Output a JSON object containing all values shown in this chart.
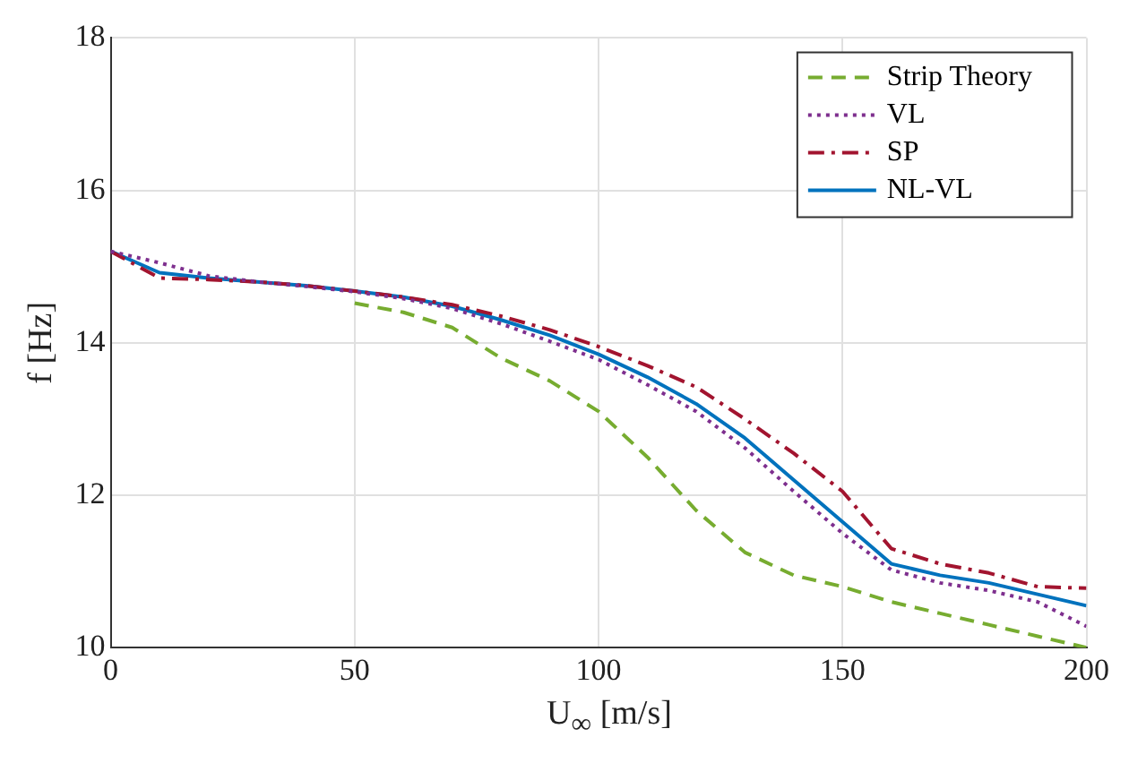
{
  "chart_data": {
    "type": "line",
    "xlabel": "U$_{∞}$ [m/s]",
    "ylabel": "f [Hz]",
    "xlim": [
      0,
      200
    ],
    "xticks": [
      0,
      50,
      100,
      150,
      200
    ],
    "ylim": [
      10,
      18
    ],
    "yticks": [
      10,
      12,
      14,
      16,
      18
    ],
    "grid": true,
    "legend": "top right",
    "marker": "none",
    "series": [
      {
        "name": "Strip Theory",
        "color": "#77ac30",
        "line_style": "dashed",
        "x": [
          50,
          60,
          70,
          80,
          90,
          100,
          110,
          120,
          130,
          140,
          150,
          160,
          170,
          180,
          190,
          200
        ],
        "values": [
          14.52,
          14.4,
          14.2,
          13.8,
          13.5,
          13.1,
          12.5,
          11.8,
          11.25,
          10.95,
          10.8,
          10.6,
          10.45,
          10.3,
          10.15,
          10.0
        ]
      },
      {
        "name": "VL",
        "color": "#7e2f8e",
        "line_style": "dotted",
        "x": [
          0,
          10,
          20,
          30,
          40,
          50,
          60,
          70,
          80,
          90,
          100,
          110,
          120,
          130,
          140,
          150,
          160,
          170,
          180,
          190,
          200
        ],
        "values": [
          15.2,
          15.05,
          14.88,
          14.8,
          14.74,
          14.67,
          14.58,
          14.45,
          14.25,
          14.02,
          13.78,
          13.45,
          13.1,
          12.62,
          12.05,
          11.5,
          11.02,
          10.85,
          10.75,
          10.6,
          10.28
        ]
      },
      {
        "name": "SP",
        "color": "#a2142f",
        "line_style": "dashdot",
        "x": [
          0,
          10,
          20,
          30,
          40,
          50,
          60,
          70,
          80,
          90,
          100,
          110,
          120,
          130,
          140,
          150,
          160,
          170,
          180,
          190,
          200
        ],
        "values": [
          15.2,
          14.85,
          14.83,
          14.8,
          14.75,
          14.68,
          14.6,
          14.5,
          14.35,
          14.17,
          13.95,
          13.7,
          13.42,
          13.0,
          12.55,
          12.05,
          11.3,
          11.1,
          10.98,
          10.8,
          10.78
        ]
      },
      {
        "name": "NL-VL",
        "color": "#0072bd",
        "line_style": "solid",
        "x": [
          0,
          10,
          20,
          30,
          40,
          50,
          60,
          70,
          80,
          90,
          100,
          110,
          120,
          130,
          140,
          150,
          160,
          170,
          180,
          190,
          200
        ],
        "values": [
          15.2,
          14.92,
          14.85,
          14.8,
          14.75,
          14.68,
          14.6,
          14.48,
          14.3,
          14.1,
          13.85,
          13.55,
          13.2,
          12.75,
          12.2,
          11.65,
          11.1,
          10.95,
          10.85,
          10.7,
          10.55
        ]
      }
    ]
  }
}
